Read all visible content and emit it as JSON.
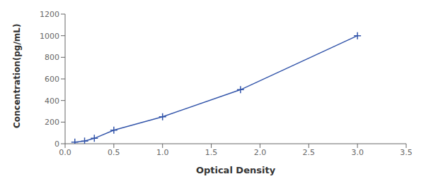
{
  "chart_data": {
    "type": "line",
    "x": [
      0.1,
      0.2,
      0.3,
      0.5,
      1.0,
      1.8,
      3.0
    ],
    "values": [
      15,
      25,
      50,
      125,
      250,
      500,
      1000
    ],
    "color": "#3355AA",
    "marker": "plus",
    "line_style": "solid",
    "xlabel": "Optical Density",
    "ylabel": "Concentration(pg/mL)",
    "xlim": [
      0,
      3.5
    ],
    "ylim": [
      0,
      1200
    ],
    "xticks": [
      {
        "value": 0,
        "label": "0.0"
      },
      0.5,
      {
        "value": 1.0,
        "label": "1.0"
      },
      1.5,
      {
        "value": 2.0,
        "label": "2.0"
      },
      2.5,
      {
        "value": 3.0,
        "label": "3.0"
      },
      3.5
    ],
    "yticks": [
      0,
      200,
      400,
      600,
      800,
      1000,
      1200
    ],
    "grid": false
  }
}
